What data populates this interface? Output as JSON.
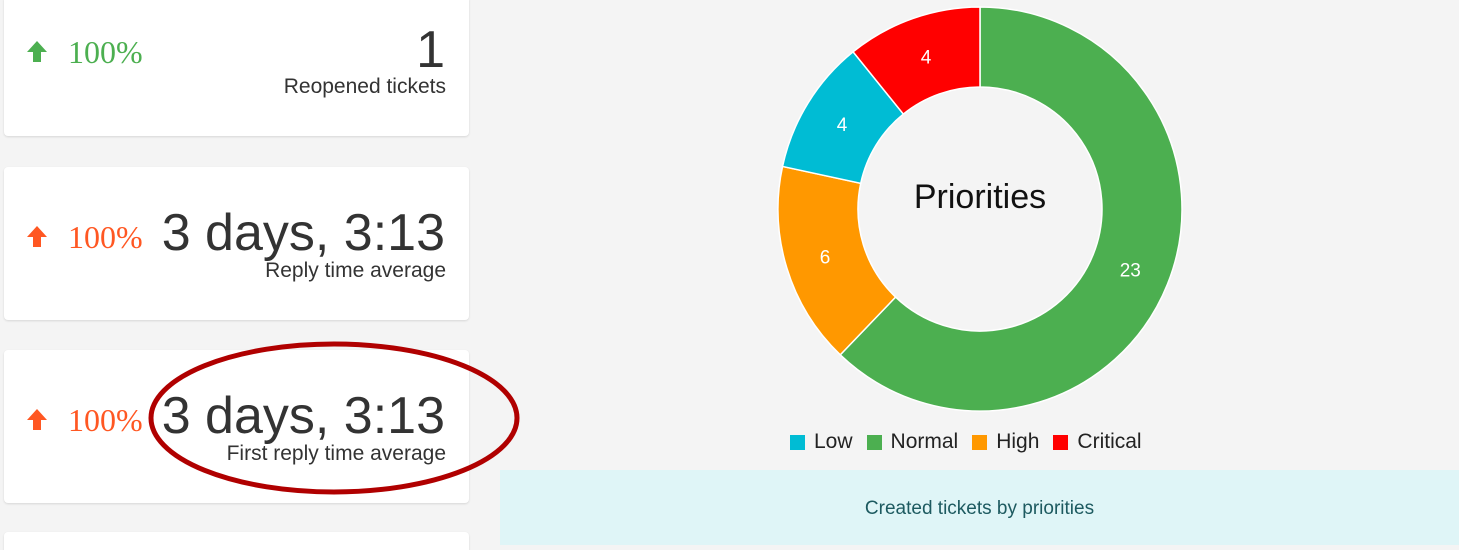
{
  "stats": [
    {
      "trend_direction": "up",
      "trend_color": "#4caf50",
      "trend_percent": "100%",
      "value": "1",
      "label": "Reopened tickets"
    },
    {
      "trend_direction": "up",
      "trend_color": "#ff5722",
      "trend_percent": "100%",
      "value": "3 days, 3:13",
      "label": "Reply time average"
    },
    {
      "trend_direction": "up",
      "trend_color": "#ff5722",
      "trend_percent": "100%",
      "value": "3 days, 3:13",
      "label": "First reply time average"
    }
  ],
  "annotation": {
    "type": "ellipse",
    "color": "#b00000",
    "target": "First reply time average"
  },
  "chart_data": {
    "type": "pie",
    "variant": "doughnut",
    "title": "Priorities",
    "categories": [
      "Low",
      "Normal",
      "High",
      "Critical"
    ],
    "values": [
      4,
      23,
      6,
      4
    ],
    "colors": [
      "#00bcd4",
      "#4caf50",
      "#ff9800",
      "#ff0000"
    ],
    "legend_position": "bottom"
  },
  "caption": "Created tickets by priorities"
}
